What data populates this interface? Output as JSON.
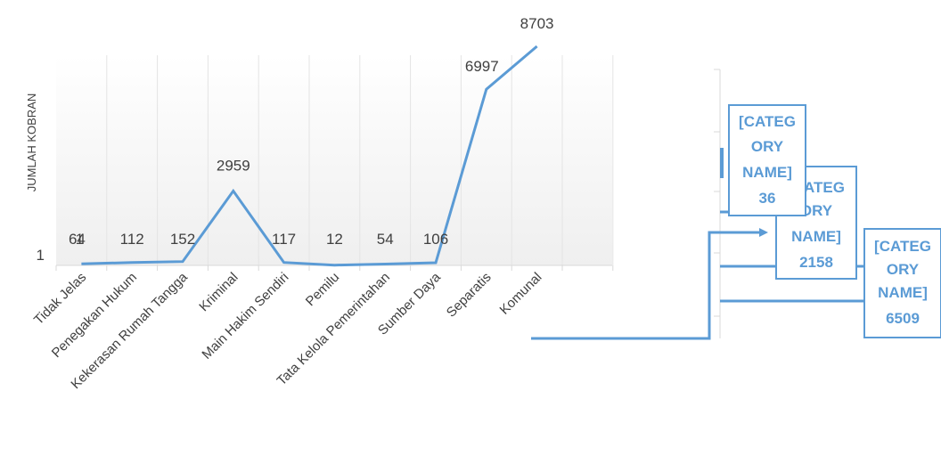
{
  "chart_data": {
    "type": "line",
    "ylabel": "JUMLAH KOBRAN",
    "y_tick": "1",
    "y_scale": "log",
    "categories": [
      "Tidak Jelas",
      "Penegakan Hukum",
      "Kekerasan Rumah Tangga",
      "Kriminal",
      "Main Hakim Sendiri",
      "Pemilu",
      "Tata Kelola Pemerintahan",
      "Sumber Daya",
      "Separatis",
      "Komunal"
    ],
    "series": [
      {
        "values": [
          64,
          112,
          152,
          2959,
          117,
          12,
          54,
          106,
          6997,
          8703
        ],
        "color": "#5b9bd5"
      }
    ],
    "extra_label": "1",
    "callouts": [
      {
        "lines": [
          "[CATEG",
          "ORY",
          "NAME]",
          "36"
        ]
      },
      {
        "lines": [
          "[CATEG",
          "ORY",
          "NAME]",
          "2158"
        ]
      },
      {
        "lines": [
          "[CATEG",
          "ORY",
          "NAME]",
          "6509"
        ]
      }
    ],
    "colors": {
      "line": "#5b9bd5",
      "axis": "#d9d9d9",
      "text": "#404040"
    },
    "grid": false,
    "legend": "none"
  }
}
